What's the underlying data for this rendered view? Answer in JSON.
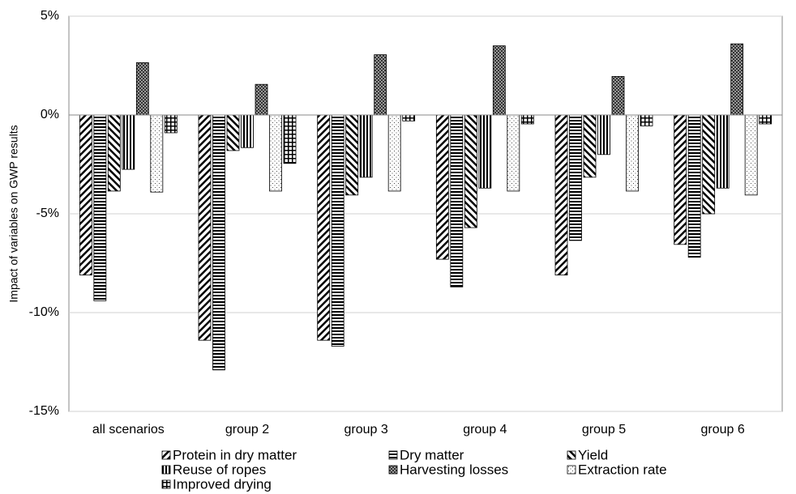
{
  "chart_data": {
    "type": "bar",
    "y_label": "Impact of variables on GWP results",
    "categories": [
      "all scenarios",
      "group 2",
      "group 3",
      "group 4",
      "group 5",
      "group 6"
    ],
    "series": [
      {
        "name": "Protein in dry matter",
        "color": "#000000",
        "values": [
          -8.1,
          -11.4,
          -11.4,
          -7.3,
          -8.1,
          -6.55
        ]
      },
      {
        "name": "Dry matter",
        "color": "#000000",
        "values": [
          -9.4,
          -12.9,
          -11.7,
          -8.7,
          -6.35,
          -7.2
        ]
      },
      {
        "name": "Yield",
        "color": "#000000",
        "values": [
          -3.85,
          -1.8,
          -4.05,
          -5.7,
          -3.15,
          -5.0
        ]
      },
      {
        "name": "Reuse of ropes",
        "color": "#000000",
        "values": [
          -2.75,
          -1.65,
          -3.15,
          -3.7,
          -2.0,
          -3.7
        ]
      },
      {
        "name": "Harvesting losses",
        "color": "#000000",
        "values": [
          2.65,
          1.55,
          3.05,
          3.5,
          1.95,
          3.6
        ]
      },
      {
        "name": "Extraction rate",
        "color": "#000000",
        "values": [
          -3.9,
          -3.85,
          -3.85,
          -3.85,
          -3.85,
          -4.05
        ]
      },
      {
        "name": "Improved drying",
        "color": "#000000",
        "values": [
          -0.9,
          -2.45,
          -0.3,
          -0.45,
          -0.55,
          -0.45
        ]
      }
    ],
    "ylim": [
      -15,
      5
    ],
    "yticks": [
      {
        "value": -15,
        "label": "-15%"
      },
      {
        "value": -10,
        "label": "-10%"
      },
      {
        "value": -5,
        "label": "-5%"
      },
      {
        "value": 0,
        "label": "0%"
      },
      {
        "value": 5,
        "label": "5%"
      }
    ],
    "grid": true
  }
}
